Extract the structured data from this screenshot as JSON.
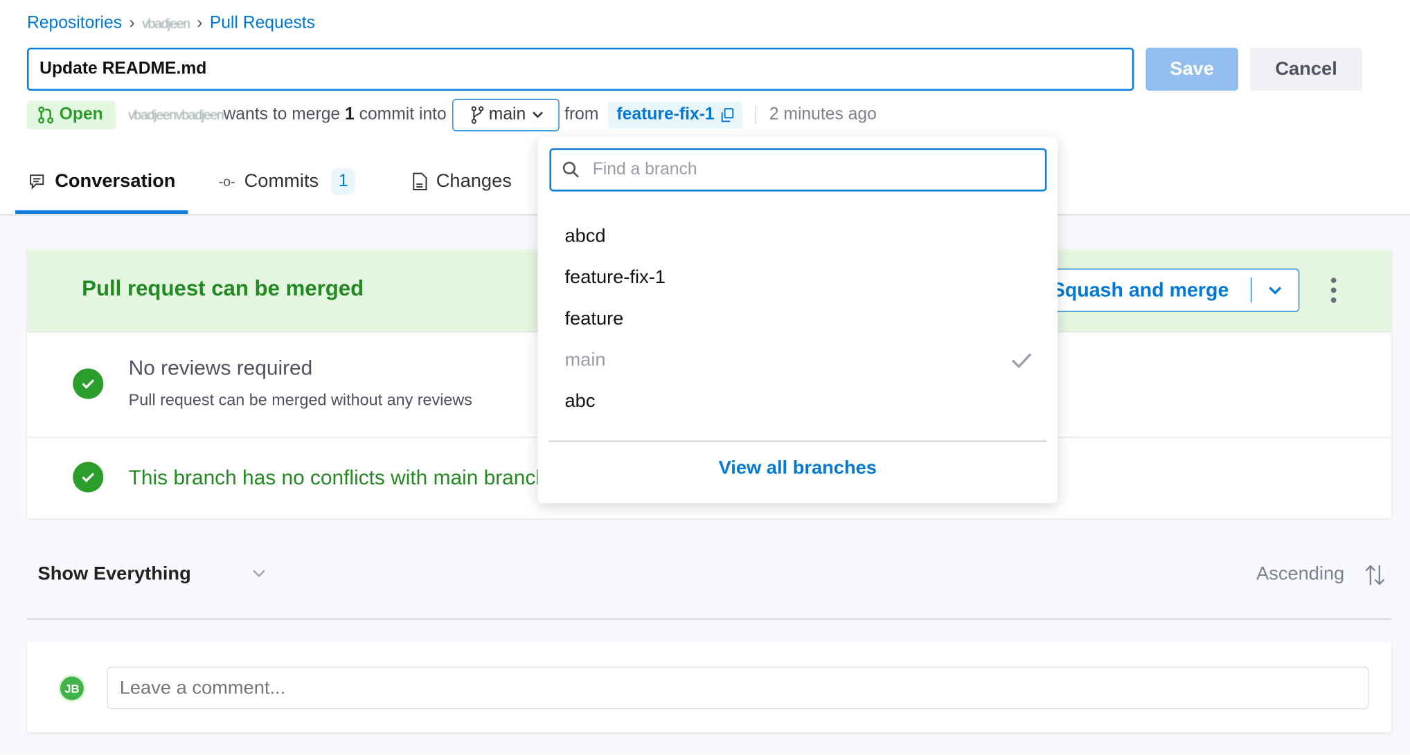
{
  "breadcrumb": {
    "items": [
      "Repositories",
      "vbadjeen",
      "Pull Requests"
    ]
  },
  "pr": {
    "title": "Update README.md",
    "save_label": "Save",
    "cancel_label": "Cancel",
    "status": "Open",
    "author": "vbadjeenvbadjeen",
    "merge_text_1": "wants to merge",
    "commit_count": "1",
    "merge_text_2": "commit into",
    "target_branch": "main",
    "from_label": "from",
    "source_branch": "feature-fix-1",
    "time": "2 minutes ago"
  },
  "tabs": [
    {
      "label": "Conversation",
      "icon": "chat-icon"
    },
    {
      "label": "Commits",
      "icon": "commit-icon",
      "count": "1"
    },
    {
      "label": "Changes",
      "icon": "file-icon"
    }
  ],
  "merge": {
    "title": "Pull request can be merged",
    "button": "Squash and merge",
    "checks": [
      {
        "title": "No reviews required",
        "subtitle": "Pull request can be merged without any reviews"
      },
      {
        "title": "This branch has no conflicts with main branch"
      }
    ]
  },
  "activity": {
    "filter": "Show Everything",
    "sort": "Ascending"
  },
  "comment": {
    "avatar": "JB",
    "placeholder": "Leave a comment..."
  },
  "branch_dropdown": {
    "search_placeholder": "Find a branch",
    "branches": [
      "abcd",
      "feature-fix-1",
      "feature",
      "main",
      "abc"
    ],
    "selected": "main",
    "view_all": "View all branches"
  },
  "colors": {
    "accent": "#0b7fe0",
    "success": "#2a9d2a",
    "success_bg": "#e5f6e1"
  }
}
